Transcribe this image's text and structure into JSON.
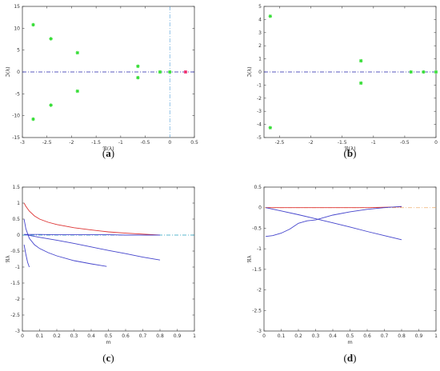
{
  "colors": {
    "stable": "#33dd33",
    "unstable": "#ee2266",
    "blue": "#4444cc",
    "red": "#dd3333",
    "axis_dash": "#2222aa",
    "zero_dash_c": "#22a0c0",
    "zero_dash_d": "#f0b070"
  },
  "chart_data": [
    {
      "id": "a",
      "type": "scatter",
      "caption": "a",
      "xlabel": "ℜ(λ)",
      "ylabel": "ℑ(λ)",
      "xlim": [
        -3,
        0.5
      ],
      "ylim": [
        -15,
        15
      ],
      "xticks": [
        -3,
        -2.5,
        -2,
        -1.5,
        -1,
        -0.5,
        0,
        0.5
      ],
      "xtick_labels": [
        "-3",
        "-2.5",
        "-2",
        "-1.5",
        "-1",
        "-0.5",
        "0",
        "0.5"
      ],
      "yticks": [
        -15,
        -10,
        -5,
        0,
        5,
        10,
        15
      ],
      "ytick_labels": [
        "-15",
        "-10",
        "-5",
        "0",
        "5",
        "10",
        "15"
      ],
      "hline": 0,
      "vline": 0,
      "points": [
        {
          "x": -2.78,
          "y": 10.8,
          "color": "stable"
        },
        {
          "x": -2.78,
          "y": -10.8,
          "color": "stable"
        },
        {
          "x": -2.42,
          "y": 7.6,
          "color": "stable"
        },
        {
          "x": -2.42,
          "y": -7.6,
          "color": "stable"
        },
        {
          "x": -1.88,
          "y": 4.4,
          "color": "stable"
        },
        {
          "x": -1.88,
          "y": -4.4,
          "color": "stable"
        },
        {
          "x": -0.65,
          "y": 1.3,
          "color": "stable"
        },
        {
          "x": -0.65,
          "y": -1.3,
          "color": "stable"
        },
        {
          "x": -0.2,
          "y": 0,
          "color": "stable"
        },
        {
          "x": 0.0,
          "y": 0,
          "color": "stable"
        },
        {
          "x": 0.32,
          "y": 0,
          "color": "unstable"
        }
      ]
    },
    {
      "id": "b",
      "type": "scatter",
      "caption": "b",
      "xlabel": "ℜ(λ)",
      "ylabel": "ℑ(λ)",
      "xlim": [
        -2.75,
        0
      ],
      "ylim": [
        -5,
        5
      ],
      "xticks": [
        -2.5,
        -2,
        -1.5,
        -1,
        -0.5,
        0
      ],
      "xtick_labels": [
        "-2.5",
        "-2",
        "-1.5",
        "-1",
        "-0.5",
        "0"
      ],
      "yticks": [
        -5,
        -4,
        -3,
        -2,
        -1,
        0,
        1,
        2,
        3,
        4,
        5
      ],
      "ytick_labels": [
        "-5",
        "-4",
        "-3",
        "-2",
        "-1",
        "0",
        "1",
        "2",
        "3",
        "4",
        "5"
      ],
      "hline": 0,
      "points": [
        {
          "x": -2.65,
          "y": 4.25,
          "color": "stable"
        },
        {
          "x": -2.65,
          "y": -4.25,
          "color": "stable"
        },
        {
          "x": -1.2,
          "y": 0.85,
          "color": "stable"
        },
        {
          "x": -1.2,
          "y": -0.85,
          "color": "stable"
        },
        {
          "x": -0.4,
          "y": 0,
          "color": "stable"
        },
        {
          "x": -0.2,
          "y": 0,
          "color": "stable"
        },
        {
          "x": 0.0,
          "y": 0,
          "color": "stable"
        }
      ]
    },
    {
      "id": "c",
      "type": "line",
      "caption": "c",
      "xlabel": "m",
      "ylabel": "ℜλ",
      "xlim": [
        0,
        1
      ],
      "ylim": [
        -3,
        1.5
      ],
      "xticks": [
        0,
        0.1,
        0.2,
        0.3,
        0.4,
        0.5,
        0.6,
        0.7,
        0.8,
        0.9,
        1
      ],
      "xtick_labels": [
        "0",
        "0.1",
        "0.2",
        "0.3",
        "0.4",
        "0.5",
        "0.6",
        "0.7",
        "0.8",
        "0.9",
        "1"
      ],
      "yticks": [
        -3,
        -2.5,
        -2,
        -1.5,
        -1,
        -0.5,
        0,
        0.5,
        1,
        1.5
      ],
      "ytick_labels": [
        "-3",
        "-2.5",
        "-2",
        "-1.5",
        "-1",
        "-0.5",
        "0",
        "0.5",
        "1",
        "1.5"
      ],
      "hline": 0,
      "series": [
        {
          "color": "red",
          "x": [
            0.01,
            0.02,
            0.04,
            0.07,
            0.1,
            0.15,
            0.2,
            0.3,
            0.4,
            0.5,
            0.6,
            0.7,
            0.8
          ],
          "y": [
            1.0,
            0.9,
            0.75,
            0.6,
            0.5,
            0.4,
            0.33,
            0.23,
            0.16,
            0.1,
            0.06,
            0.03,
            0.0
          ]
        },
        {
          "color": "blue",
          "x": [
            0.01,
            0.1,
            0.2,
            0.3,
            0.4,
            0.5,
            0.6,
            0.7,
            0.8
          ],
          "y": [
            0.02,
            0.02,
            0.01,
            0.01,
            0.01,
            0.01,
            0.0,
            0.0,
            0.0
          ]
        },
        {
          "color": "blue",
          "x": [
            0.01,
            0.1,
            0.2,
            0.3,
            0.4,
            0.5,
            0.6,
            0.7,
            0.8
          ],
          "y": [
            0.02,
            -0.07,
            -0.16,
            -0.26,
            -0.37,
            -0.48,
            -0.58,
            -0.69,
            -0.78
          ]
        },
        {
          "color": "blue",
          "x": [
            0.01,
            0.02,
            0.04,
            0.07,
            0.1,
            0.15,
            0.2,
            0.3,
            0.4,
            0.49
          ],
          "y": [
            0.5,
            0.2,
            -0.1,
            -0.3,
            -0.42,
            -0.55,
            -0.65,
            -0.8,
            -0.9,
            -0.98
          ]
        },
        {
          "color": "blue",
          "x": [
            0.01,
            0.02,
            0.03,
            0.04
          ],
          "y": [
            -0.3,
            -0.6,
            -0.85,
            -1.0
          ]
        }
      ]
    },
    {
      "id": "d",
      "type": "line",
      "caption": "d",
      "xlabel": "m",
      "ylabel": "ℜλ",
      "xlim": [
        0,
        1
      ],
      "ylim": [
        -3,
        0.5
      ],
      "xticks": [
        0,
        0.1,
        0.2,
        0.3,
        0.4,
        0.5,
        0.6,
        0.7,
        0.8,
        0.9,
        1
      ],
      "xtick_labels": [
        "0",
        "0.1",
        "0.2",
        "0.3",
        "0.4",
        "0.5",
        "0.6",
        "0.7",
        "0.8",
        "0.9",
        "1"
      ],
      "yticks": [
        -3,
        -2.5,
        -2,
        -1.5,
        -1,
        -0.5,
        0,
        0.5
      ],
      "ytick_labels": [
        "-3",
        "-2.5",
        "-2",
        "-1.5",
        "-1",
        "-0.5",
        "0",
        "0.5"
      ],
      "hline": 0,
      "series": [
        {
          "color": "red",
          "x": [
            0.01,
            0.1,
            0.2,
            0.3,
            0.4,
            0.5,
            0.6,
            0.7,
            0.8
          ],
          "y": [
            0.0,
            0.0,
            0.0,
            0.0,
            0.0,
            0.0,
            0.0,
            0.01,
            0.02
          ]
        },
        {
          "color": "blue",
          "x": [
            0.01,
            0.05,
            0.1,
            0.15,
            0.2,
            0.25,
            0.3,
            0.4,
            0.5,
            0.6,
            0.7,
            0.8
          ],
          "y": [
            -0.7,
            -0.68,
            -0.62,
            -0.52,
            -0.38,
            -0.32,
            -0.3,
            -0.18,
            -0.1,
            -0.04,
            0.0,
            0.03
          ]
        },
        {
          "color": "blue",
          "x": [
            0.01,
            0.1,
            0.2,
            0.3,
            0.4,
            0.5,
            0.6,
            0.7,
            0.8
          ],
          "y": [
            0.0,
            -0.08,
            -0.17,
            -0.27,
            -0.37,
            -0.47,
            -0.58,
            -0.68,
            -0.78
          ]
        }
      ]
    }
  ]
}
